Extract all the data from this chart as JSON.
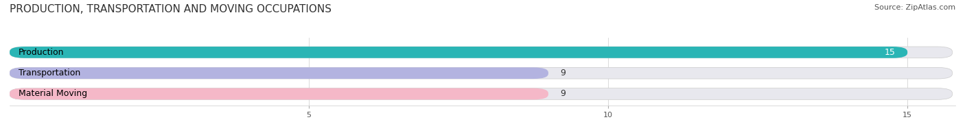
{
  "title": "PRODUCTION, TRANSPORTATION AND MOVING OCCUPATIONS",
  "source": "Source: ZipAtlas.com",
  "categories": [
    "Production",
    "Transportation",
    "Material Moving"
  ],
  "values": [
    15,
    9,
    9
  ],
  "bar_colors": [
    "#2ab5b5",
    "#b3b3e0",
    "#f5b8c8"
  ],
  "bar_bg_color": "#e8e8ee",
  "xlim": [
    0,
    15.8
  ],
  "xticks": [
    5,
    10,
    15
  ],
  "title_fontsize": 11,
  "source_fontsize": 8,
  "label_fontsize": 9,
  "value_fontsize": 9,
  "background_color": "#ffffff",
  "bar_height": 0.55,
  "bar_edge_color": "#cccccc"
}
